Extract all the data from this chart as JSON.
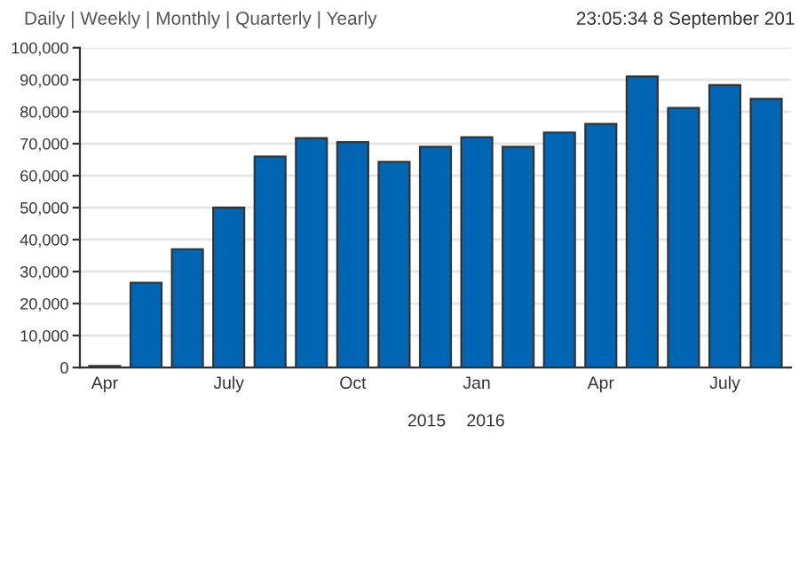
{
  "chart_data": {
    "type": "bar",
    "categories": [
      "Apr",
      null,
      null,
      "July",
      null,
      null,
      "Oct",
      null,
      null,
      "Jan",
      null,
      null,
      "Apr",
      null,
      null,
      "July",
      null
    ],
    "values": [
      500,
      26500,
      37000,
      50000,
      66000,
      71700,
      70500,
      64300,
      69000,
      72000,
      69000,
      73500,
      76200,
      91000,
      81200,
      88300,
      84000
    ],
    "color": "#0066b3",
    "ylim": [
      0,
      100000
    ],
    "yticks": [
      0,
      {
        "value": 10000,
        "label": "10,000"
      },
      {
        "value": 20000,
        "label": "20,000"
      },
      {
        "value": 30000,
        "label": "30,000"
      },
      {
        "value": 40000,
        "label": "40,000"
      },
      {
        "value": 50000,
        "label": "50,000"
      },
      {
        "value": 60000,
        "label": "60,000"
      },
      {
        "value": 70000,
        "label": "70,000"
      },
      {
        "value": 80000,
        "label": "80,000"
      },
      {
        "value": 90000,
        "label": "90,000"
      },
      {
        "value": 100000,
        "label": "100,000"
      }
    ],
    "grid": "y",
    "annotations": [
      "Daily | Weekly | Monthly | Quarterly | Yearly",
      "23:05:34 8 September 201",
      "2015",
      "2016"
    ]
  }
}
